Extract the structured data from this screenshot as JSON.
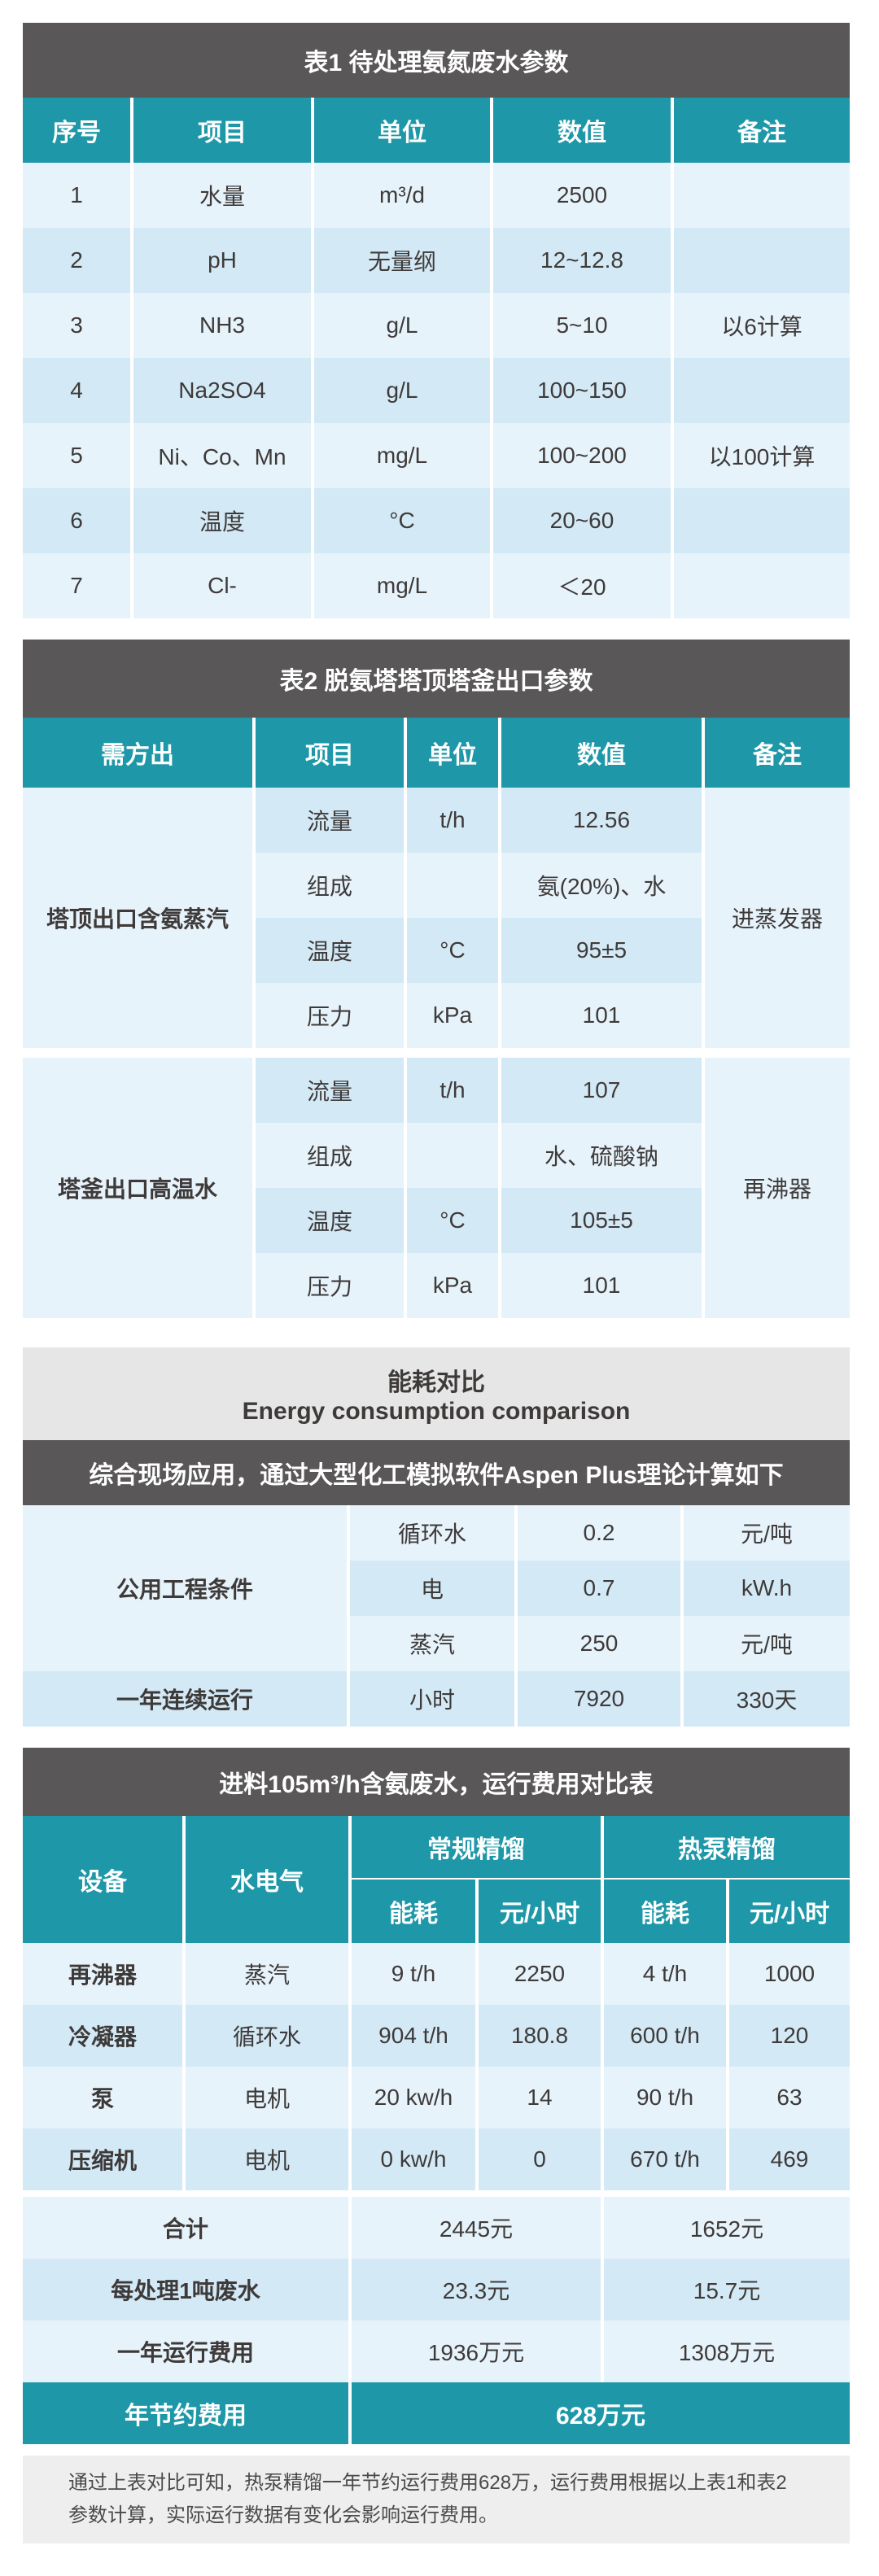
{
  "colors": {
    "title_bg": "#595757",
    "header_bg": "#1e98a8",
    "row_light": "#e7f3fb",
    "row_dark": "#d3e9f6",
    "section_bg": "#e6e6e6"
  },
  "table1": {
    "title": "表1  待处理氨氮废水参数",
    "headers": [
      "序号",
      "项目",
      "单位",
      "数值",
      "备注"
    ],
    "rows": [
      [
        "1",
        "水量",
        "m³/d",
        "2500",
        ""
      ],
      [
        "2",
        "pH",
        "无量纲",
        "12~12.8",
        ""
      ],
      [
        "3",
        "NH3",
        "g/L",
        "5~10",
        "以6计算"
      ],
      [
        "4",
        "Na2SO4",
        "g/L",
        "100~150",
        ""
      ],
      [
        "5",
        "Ni、Co、Mn",
        "mg/L",
        "100~200",
        "以100计算"
      ],
      [
        "6",
        "温度",
        "°C",
        "20~60",
        ""
      ],
      [
        "7",
        "Cl-",
        "mg/L",
        "＜20",
        ""
      ]
    ]
  },
  "table2": {
    "title": "表2  脱氨塔塔顶塔釜出口参数",
    "headers": [
      "需方出",
      "项目",
      "单位",
      "数值",
      "备注"
    ],
    "groups": [
      {
        "name": "塔顶出口含氨蒸汽",
        "remark": "进蒸发器",
        "rows": [
          [
            "流量",
            "t/h",
            "12.56"
          ],
          [
            "组成",
            "",
            "氨(20%)、水"
          ],
          [
            "温度",
            "°C",
            "95±5"
          ],
          [
            "压力",
            "kPa",
            "101"
          ]
        ]
      },
      {
        "name": "塔釜出口高温水",
        "remark": "再沸器",
        "rows": [
          [
            "流量",
            "t/h",
            "107"
          ],
          [
            "组成",
            "",
            "水、硫酸钠"
          ],
          [
            "温度",
            "°C",
            "105±5"
          ],
          [
            "压力",
            "kPa",
            "101"
          ]
        ]
      }
    ]
  },
  "energy": {
    "title_cn": "能耗对比",
    "title_en": "Energy consumption comparison",
    "banner": "综合现场应用，通过大型化工模拟软件Aspen Plus理论计算如下",
    "utility_label": "公用工程条件",
    "utilities": [
      [
        "循环水",
        "0.2",
        "元/吨"
      ],
      [
        "电",
        "0.7",
        "kW.h"
      ],
      [
        "蒸汽",
        "250",
        "元/吨"
      ]
    ],
    "annual": [
      "一年连续运行",
      "小时",
      "7920",
      "330天"
    ]
  },
  "cost": {
    "title": "进料105m³/h含氨废水，运行费用对比表",
    "h_device": "设备",
    "h_utility": "水电气",
    "h_conv": "常规精馏",
    "h_hp": "热泵精馏",
    "h_energy": "能耗",
    "h_rate": "元/小时",
    "rows": [
      [
        "再沸器",
        "蒸汽",
        "9 t/h",
        "2250",
        "4 t/h",
        "1000"
      ],
      [
        "冷凝器",
        "循环水",
        "904 t/h",
        "180.8",
        "600 t/h",
        "120"
      ],
      [
        "泵",
        "电机",
        "20 kw/h",
        "14",
        "90 t/h",
        "63"
      ],
      [
        "压缩机",
        "电机",
        "0 kw/h",
        "0",
        "670 t/h",
        "469"
      ]
    ],
    "summary": [
      [
        "合计",
        "2445元",
        "1652元"
      ],
      [
        "每处理1吨废水",
        "23.3元",
        "15.7元"
      ],
      [
        "一年运行费用",
        "1936万元",
        "1308万元"
      ]
    ],
    "saving": [
      "年节约费用",
      "628万元"
    ],
    "note": "通过上表对比可知，热泵精馏一年节约运行费用628万，运行费用根据以上表1和表2参数计算，实际运行数据有变化会影响运行费用。"
  }
}
